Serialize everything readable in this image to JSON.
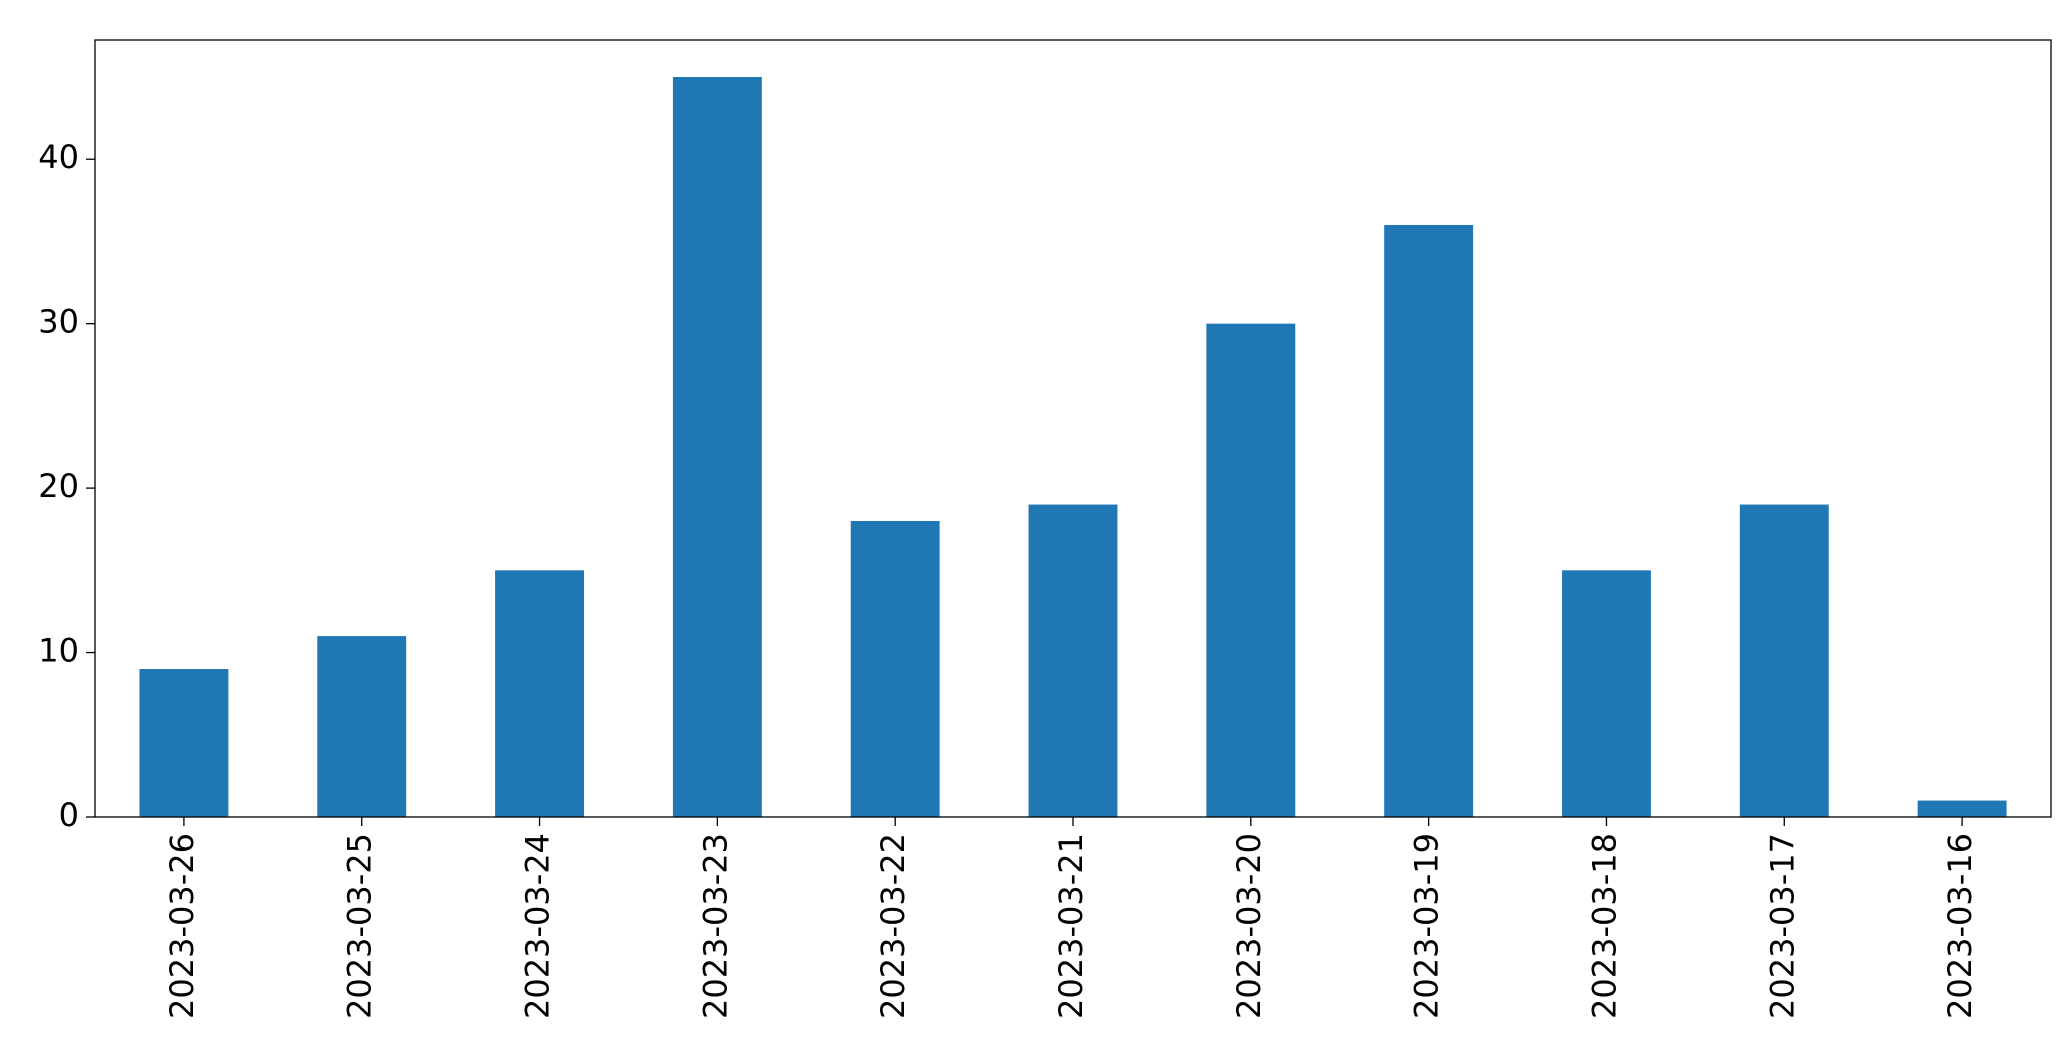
{
  "chart_data": {
    "type": "bar",
    "categories": [
      "2023-03-26",
      "2023-03-25",
      "2023-03-24",
      "2023-03-23",
      "2023-03-22",
      "2023-03-21",
      "2023-03-20",
      "2023-03-19",
      "2023-03-18",
      "2023-03-17",
      "2023-03-16"
    ],
    "values": [
      9,
      11,
      15,
      45,
      18,
      19,
      30,
      36,
      15,
      19,
      1
    ],
    "color": "#1f77b4",
    "ylim": [
      0,
      47.25
    ],
    "yticks": [
      0,
      10,
      20,
      30,
      40
    ],
    "grid": false
  }
}
